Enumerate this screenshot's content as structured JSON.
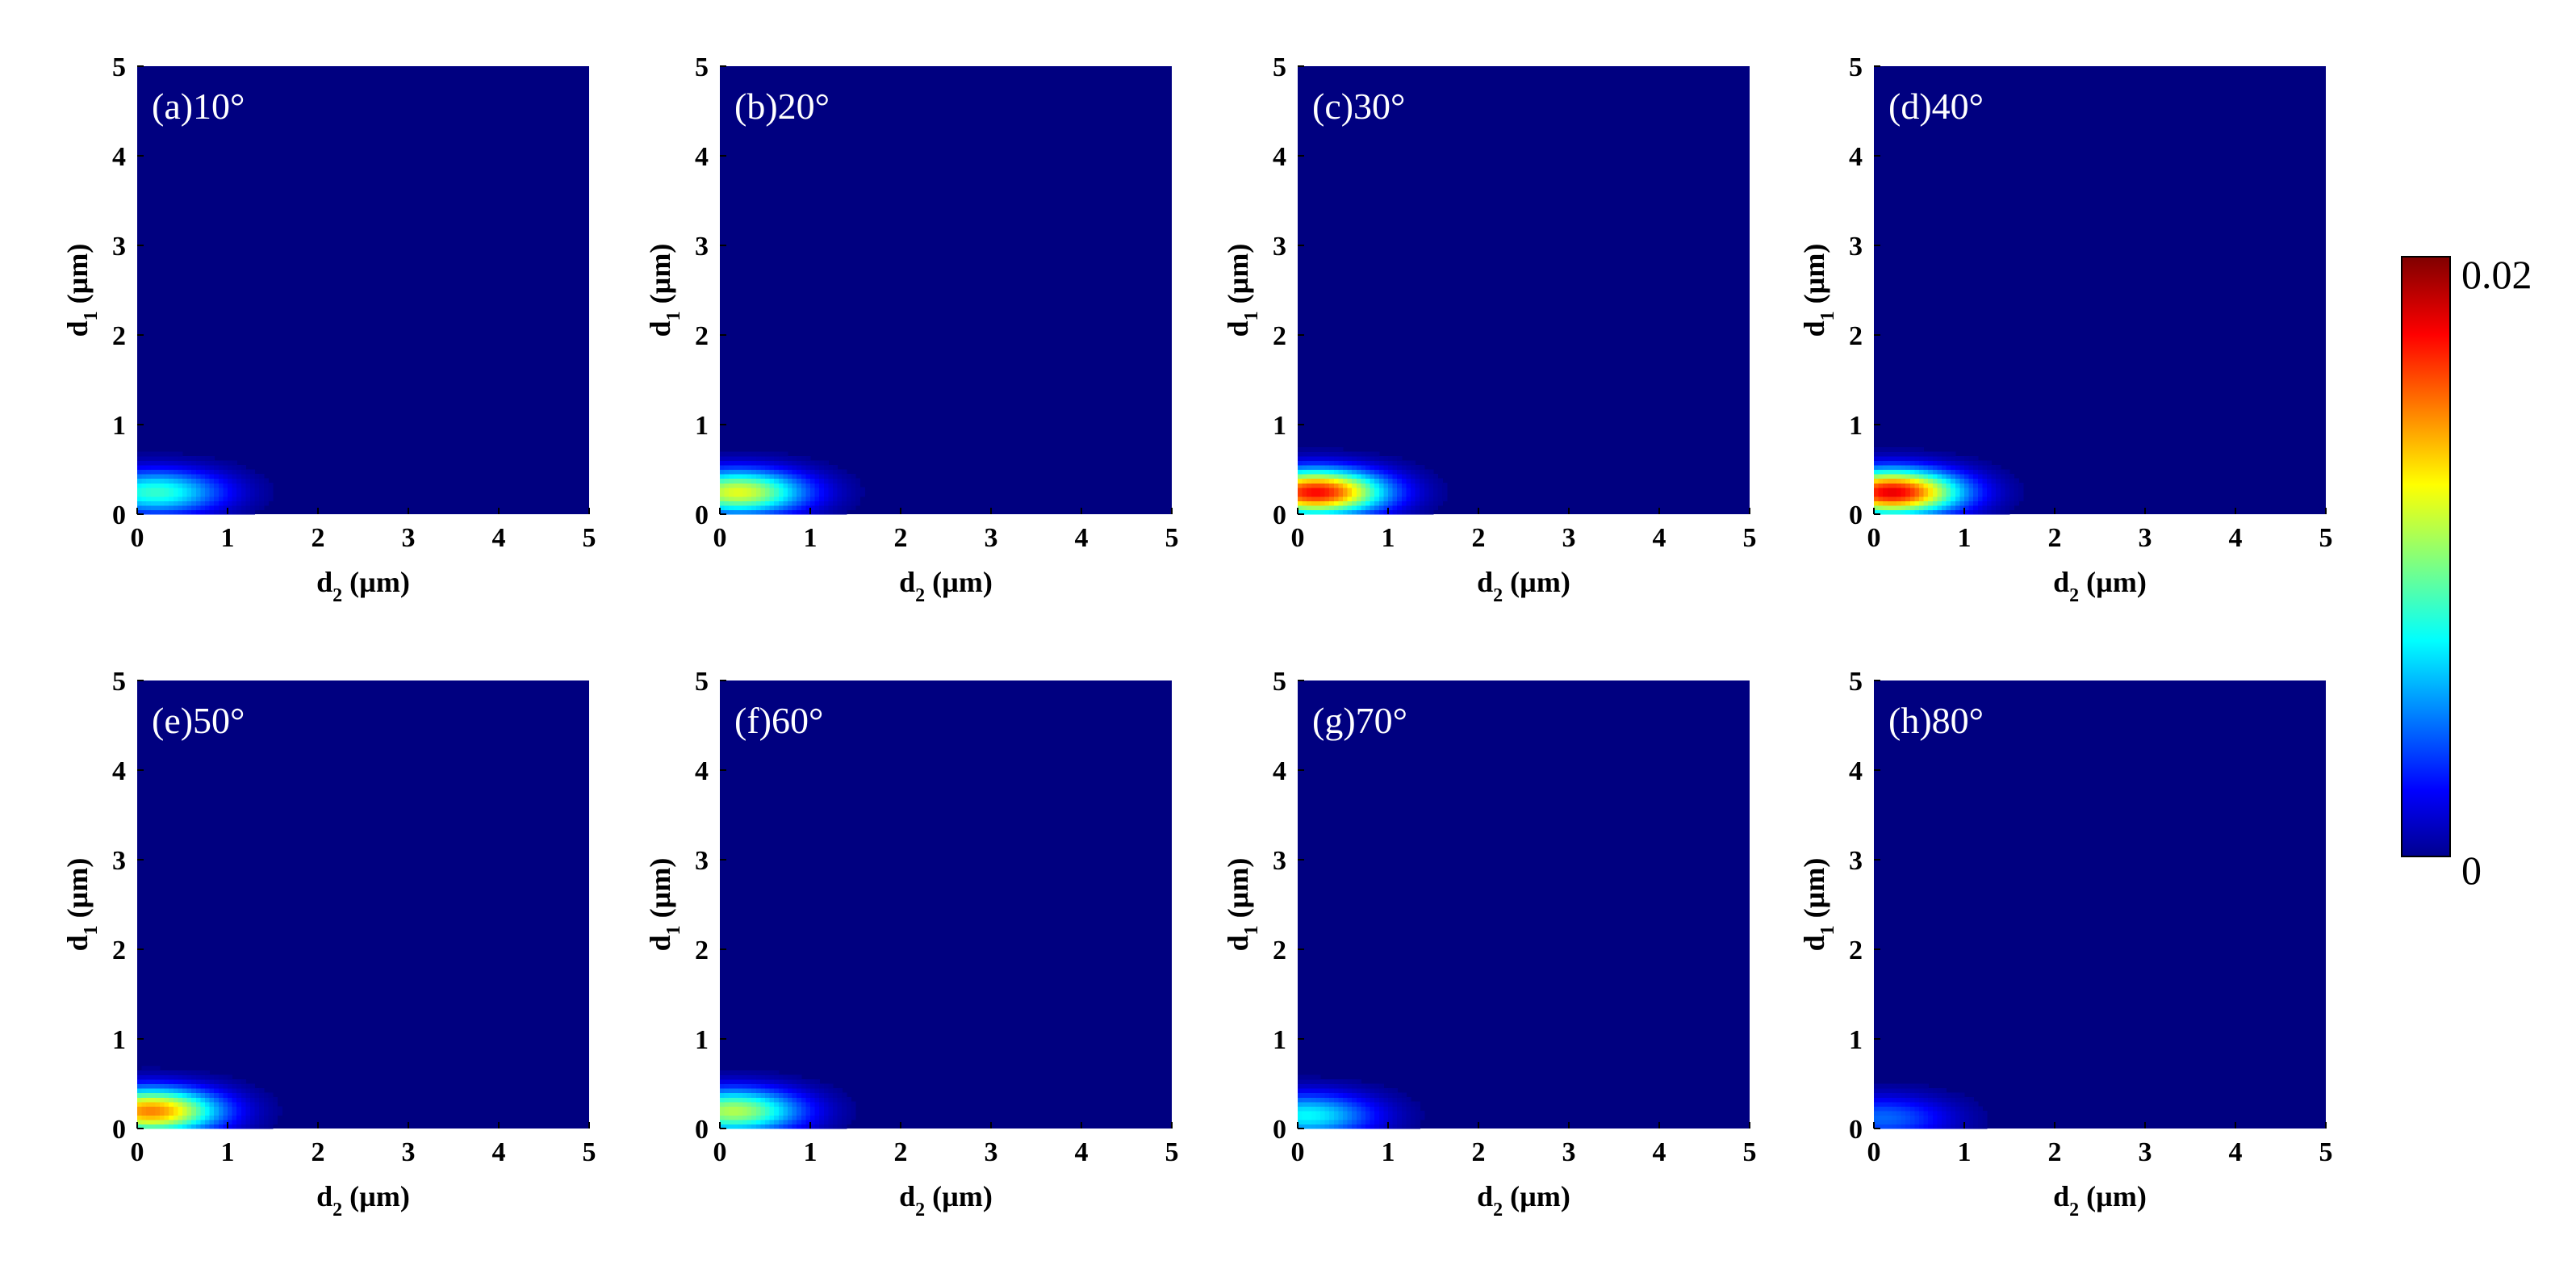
{
  "colors": {
    "background": "#ffffff",
    "colormap": "jet",
    "colormap_low": "#00008f",
    "colormap_high": "#800000",
    "panel_label": "#ffffff"
  },
  "colorbar": {
    "min": 0,
    "max": 0.02,
    "max_label": "0.02",
    "min_label": "0"
  },
  "chart_data": [
    {
      "type": "heatmap",
      "panel_label": "(a)10°",
      "xlabel_main": "d",
      "xlabel_sub": "2",
      "xlabel_unit": " (µm)",
      "ylabel_main": "d",
      "ylabel_sub": "1",
      "ylabel_unit": " (µm)",
      "xlim": [
        0,
        5
      ],
      "ylim": [
        0,
        5
      ],
      "x_ticks": [
        "0",
        "1",
        "2",
        "3",
        "4",
        "5"
      ],
      "y_ticks": [
        "0",
        "1",
        "2",
        "3",
        "4",
        "5"
      ],
      "peak": {
        "d2": 0.2,
        "d1": 0.25,
        "value": 0.0085
      }
    },
    {
      "type": "heatmap",
      "panel_label": "(b)20°",
      "xlabel_main": "d",
      "xlabel_sub": "2",
      "xlabel_unit": " (µm)",
      "ylabel_main": "d",
      "ylabel_sub": "1",
      "ylabel_unit": " (µm)",
      "xlim": [
        0,
        5
      ],
      "ylim": [
        0,
        5
      ],
      "x_ticks": [
        "0",
        "1",
        "2",
        "3",
        "4",
        "5"
      ],
      "y_ticks": [
        "0",
        "1",
        "2",
        "3",
        "4",
        "5"
      ],
      "peak": {
        "d2": 0.2,
        "d1": 0.25,
        "value": 0.012
      }
    },
    {
      "type": "heatmap",
      "panel_label": "(c)30°",
      "xlabel_main": "d",
      "xlabel_sub": "2",
      "xlabel_unit": " (µm)",
      "ylabel_main": "d",
      "ylabel_sub": "1",
      "ylabel_unit": " (µm)",
      "xlim": [
        0,
        5
      ],
      "ylim": [
        0,
        5
      ],
      "x_ticks": [
        "0",
        "1",
        "2",
        "3",
        "4",
        "5"
      ],
      "y_ticks": [
        "0",
        "1",
        "2",
        "3",
        "4",
        "5"
      ],
      "peak": {
        "d2": 0.2,
        "d1": 0.25,
        "value": 0.0175
      }
    },
    {
      "type": "heatmap",
      "panel_label": "(d)40°",
      "xlabel_main": "d",
      "xlabel_sub": "2",
      "xlabel_unit": " (µm)",
      "ylabel_main": "d",
      "ylabel_sub": "1",
      "ylabel_unit": " (µm)",
      "xlim": [
        0,
        5
      ],
      "ylim": [
        0,
        5
      ],
      "x_ticks": [
        "0",
        "1",
        "2",
        "3",
        "4",
        "5"
      ],
      "y_ticks": [
        "0",
        "1",
        "2",
        "3",
        "4",
        "5"
      ],
      "peak": {
        "d2": 0.2,
        "d1": 0.25,
        "value": 0.018
      }
    },
    {
      "type": "heatmap",
      "panel_label": "(e)50°",
      "xlabel_main": "d",
      "xlabel_sub": "2",
      "xlabel_unit": " (µm)",
      "ylabel_main": "d",
      "ylabel_sub": "1",
      "ylabel_unit": " (µm)",
      "xlim": [
        0,
        5
      ],
      "ylim": [
        0,
        5
      ],
      "x_ticks": [
        "0",
        "1",
        "2",
        "3",
        "4",
        "5"
      ],
      "y_ticks": [
        "0",
        "1",
        "2",
        "3",
        "4",
        "5"
      ],
      "peak": {
        "d2": 0.15,
        "d1": 0.2,
        "value": 0.015
      }
    },
    {
      "type": "heatmap",
      "panel_label": "(f)60°",
      "xlabel_main": "d",
      "xlabel_sub": "2",
      "xlabel_unit": " (µm)",
      "ylabel_main": "d",
      "ylabel_sub": "1",
      "ylabel_unit": " (µm)",
      "xlim": [
        0,
        5
      ],
      "ylim": [
        0,
        5
      ],
      "x_ticks": [
        "0",
        "1",
        "2",
        "3",
        "4",
        "5"
      ],
      "y_ticks": [
        "0",
        "1",
        "2",
        "3",
        "4",
        "5"
      ],
      "peak": {
        "d2": 0.15,
        "d1": 0.2,
        "value": 0.011
      }
    },
    {
      "type": "heatmap",
      "panel_label": "(g)70°",
      "xlabel_main": "d",
      "xlabel_sub": "2",
      "xlabel_unit": " (µm)",
      "ylabel_main": "d",
      "ylabel_sub": "1",
      "ylabel_unit": " (µm)",
      "xlim": [
        0,
        5
      ],
      "ylim": [
        0,
        5
      ],
      "x_ticks": [
        "0",
        "1",
        "2",
        "3",
        "4",
        "5"
      ],
      "y_ticks": [
        "0",
        "1",
        "2",
        "3",
        "4",
        "5"
      ],
      "peak": {
        "d2": 0.1,
        "d1": 0.15,
        "value": 0.0075
      }
    },
    {
      "type": "heatmap",
      "panel_label": "(h)80°",
      "xlabel_main": "d",
      "xlabel_sub": "2",
      "xlabel_unit": " (µm)",
      "ylabel_main": "d",
      "ylabel_sub": "1",
      "ylabel_unit": " (µm)",
      "xlim": [
        0,
        5
      ],
      "ylim": [
        0,
        5
      ],
      "x_ticks": [
        "0",
        "1",
        "2",
        "3",
        "4",
        "5"
      ],
      "y_ticks": [
        "0",
        "1",
        "2",
        "3",
        "4",
        "5"
      ],
      "peak": {
        "d2": 0.1,
        "d1": 0.12,
        "value": 0.0045
      }
    }
  ]
}
